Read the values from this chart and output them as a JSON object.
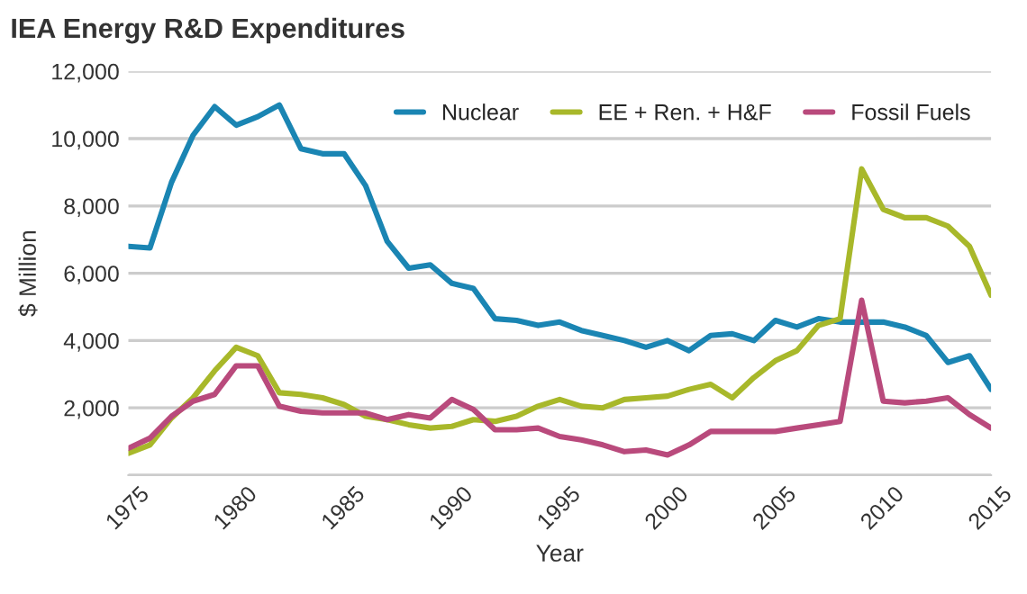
{
  "chart_data": {
    "type": "line",
    "title": "IEA Energy R&D Expenditures",
    "xlabel": "Year",
    "ylabel": "$ Million",
    "x": [
      1975,
      1976,
      1977,
      1978,
      1979,
      1980,
      1981,
      1982,
      1983,
      1984,
      1985,
      1986,
      1987,
      1988,
      1989,
      1990,
      1991,
      1992,
      1993,
      1994,
      1995,
      1996,
      1997,
      1998,
      1999,
      2000,
      2001,
      2002,
      2003,
      2004,
      2005,
      2006,
      2007,
      2008,
      2009,
      2010,
      2011,
      2012,
      2013,
      2014,
      2015
    ],
    "series": [
      {
        "name": "Nuclear",
        "color": "#1a85b3",
        "values": [
          6800,
          6750,
          8700,
          10100,
          10950,
          10400,
          10650,
          11000,
          9700,
          9550,
          9550,
          8600,
          6950,
          6150,
          6250,
          5700,
          5550,
          4650,
          4600,
          4450,
          4550,
          4300,
          4150,
          4000,
          3800,
          4000,
          3700,
          4150,
          4200,
          4000,
          4600,
          4400,
          4650,
          4550,
          4550,
          4550,
          4400,
          4150,
          3350,
          3550,
          2550
        ]
      },
      {
        "name": "EE + Ren. + H&F",
        "color": "#a8b82a",
        "values": [
          650,
          900,
          1700,
          2300,
          3100,
          3800,
          3550,
          2450,
          2400,
          2300,
          2100,
          1750,
          1650,
          1500,
          1400,
          1450,
          1650,
          1600,
          1750,
          2050,
          2250,
          2050,
          2000,
          2250,
          2300,
          2350,
          2550,
          2700,
          2300,
          2900,
          3400,
          3700,
          4450,
          4650,
          9100,
          7900,
          7650,
          7650,
          7400,
          6800,
          5350
        ]
      },
      {
        "name": "Fossil Fuels",
        "color": "#b94a7c",
        "values": [
          800,
          1100,
          1750,
          2200,
          2400,
          3250,
          3250,
          2050,
          1900,
          1850,
          1850,
          1850,
          1650,
          1800,
          1700,
          2250,
          1950,
          1350,
          1350,
          1400,
          1150,
          1050,
          900,
          700,
          750,
          600,
          900,
          1300,
          1300,
          1300,
          1300,
          1400,
          1500,
          1600,
          5200,
          2200,
          2150,
          2200,
          2300,
          1800,
          1400
        ]
      }
    ],
    "xlim": [
      1975,
      2015
    ],
    "xticks": [
      1975,
      1980,
      1985,
      1990,
      1995,
      2000,
      2005,
      2010,
      2015
    ],
    "ylim": [
      0,
      12000
    ],
    "yticks": [
      {
        "value": 0,
        "label": null
      },
      {
        "value": 2000,
        "label": "2,000"
      },
      {
        "value": 4000,
        "label": "4,000"
      },
      {
        "value": 6000,
        "label": "6,000"
      },
      {
        "value": 8000,
        "label": "8,000"
      },
      {
        "value": 10000,
        "label": "10,000"
      },
      {
        "value": 12000,
        "label": "12,000"
      }
    ],
    "grid": "y",
    "legend": "top right",
    "marker": "none",
    "line_style": "solid"
  }
}
